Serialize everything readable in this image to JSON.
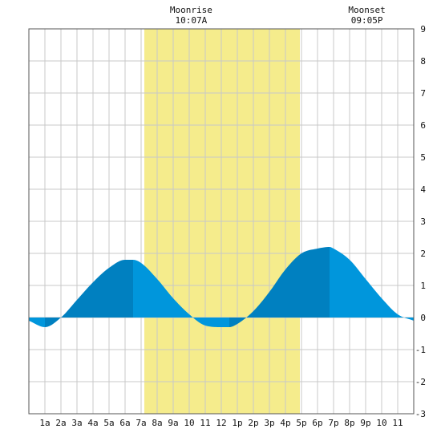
{
  "chart_data": {
    "type": "area",
    "x_label_unit": "hour",
    "x_tick_labels": [
      "1a",
      "2a",
      "3a",
      "4a",
      "5a",
      "6a",
      "7a",
      "8a",
      "9a",
      "10",
      "11",
      "12",
      "1p",
      "2p",
      "3p",
      "4p",
      "5p",
      "6p",
      "7p",
      "8p",
      "9p",
      "10",
      "11"
    ],
    "ylim": [
      -3,
      9
    ],
    "y_ticks": [
      9,
      8,
      7,
      6,
      5,
      4,
      3,
      2,
      1,
      0,
      -1,
      -2,
      -3
    ],
    "grid": true,
    "series": [
      {
        "x": [
          0,
          1,
          2,
          3,
          4,
          5,
          6,
          6.5,
          7,
          8,
          9,
          10,
          11,
          12,
          12.5,
          13,
          14,
          15,
          16,
          17,
          18,
          18.75,
          19,
          20,
          21,
          22,
          23,
          24
        ],
        "values": [
          -0.1,
          -0.3,
          0.0,
          0.55,
          1.1,
          1.55,
          1.8,
          1.8,
          1.7,
          1.2,
          0.6,
          0.1,
          -0.25,
          -0.3,
          -0.3,
          -0.2,
          0.2,
          0.8,
          1.5,
          2.0,
          2.15,
          2.2,
          2.15,
          1.8,
          1.2,
          0.6,
          0.1,
          -0.1
        ]
      }
    ],
    "annotations": {
      "moonrise": {
        "label": "Moonrise",
        "time": "10:07A",
        "hour": 10.12
      },
      "moonset": {
        "label": "Moonset",
        "time": "09:05P",
        "hour": 21.08
      }
    },
    "daylight_band": {
      "start_hour": 7.2,
      "end_hour": 16.9
    },
    "turning_points": [
      {
        "hour": 1.0,
        "value": -0.3
      },
      {
        "hour": 6.5,
        "value": 1.8
      },
      {
        "hour": 12.5,
        "value": -0.3
      },
      {
        "hour": 18.75,
        "value": 2.2
      },
      {
        "hour": 24,
        "value": -0.1
      }
    ],
    "colors": {
      "rising": "#0080c0",
      "falling": "#0096dc",
      "daylight": "#f5ec8c",
      "grid": "#c8c8c8",
      "border": "#555555"
    }
  }
}
